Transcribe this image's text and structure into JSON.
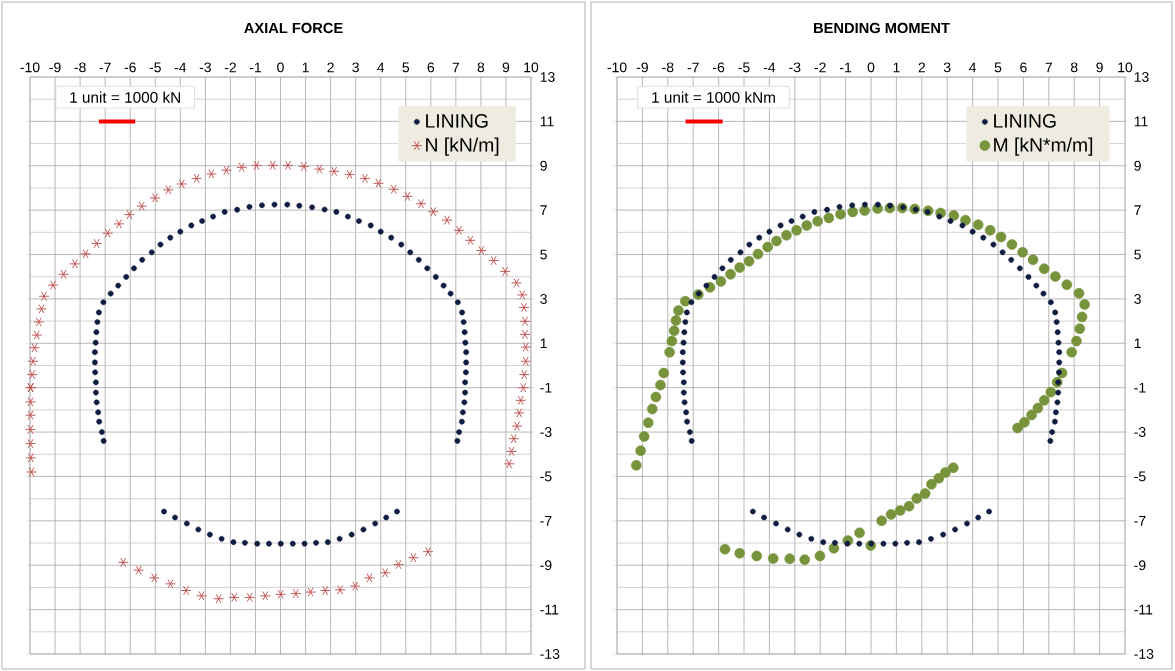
{
  "chart_data": [
    {
      "type": "scatter",
      "title": "AXIAL FORCE",
      "xlim": [
        -10,
        10
      ],
      "ylim": [
        -13,
        13
      ],
      "xticks": [
        -10,
        -9,
        -8,
        -7,
        -6,
        -5,
        -4,
        -3,
        -2,
        -1,
        0,
        1,
        2,
        3,
        4,
        5,
        6,
        7,
        8,
        9,
        10
      ],
      "yticks": [
        -13,
        -11,
        -9,
        -7,
        -5,
        -3,
        -1,
        1,
        3,
        5,
        7,
        9,
        11,
        13
      ],
      "grid": true,
      "legend": "top right",
      "annotations": [
        "1 unit = 1000 kN"
      ],
      "series": [
        {
          "name": "LINING",
          "color": "#0f1d40",
          "marker": "circle",
          "x": [
            -7.06,
            -7.13,
            -7.24,
            -7.28,
            -7.34,
            -7.37,
            -7.37,
            -7.4,
            -7.41,
            -7.41,
            -7.38,
            -7.35,
            -7.31,
            -7.25,
            -7.07,
            -6.78,
            -6.48,
            -6.16,
            -5.85,
            -5.52,
            -5.14,
            -4.79,
            -4.4,
            -4.0,
            -3.56,
            -3.13,
            -2.69,
            -2.23,
            -1.73,
            -1.24,
            -0.74,
            -0.24,
            0.27,
            0.75,
            1.26,
            1.76,
            2.23,
            2.69,
            3.13,
            3.6,
            4.0,
            4.42,
            4.82,
            5.18,
            5.52,
            5.86,
            6.2,
            6.51,
            6.79,
            7.08,
            7.25,
            7.31,
            7.35,
            7.38,
            7.41,
            7.41,
            7.4,
            7.37,
            7.37,
            7.34,
            7.28,
            7.24,
            7.13,
            7.06,
            -4.65,
            -4.21,
            -3.74,
            -3.28,
            -2.82,
            -2.35,
            -1.88,
            -1.42,
            -0.93,
            -0.46,
            0.01,
            0.49,
            0.96,
            1.42,
            1.89,
            2.36,
            2.84,
            3.31,
            3.78,
            4.22,
            4.65
          ],
          "values": [
            -3.4,
            -3.0,
            -2.53,
            -2.11,
            -1.66,
            -1.22,
            -0.76,
            -0.31,
            0.14,
            0.6,
            1.03,
            1.5,
            1.96,
            2.39,
            2.85,
            3.24,
            3.6,
            3.99,
            4.38,
            4.76,
            5.1,
            5.45,
            5.76,
            6.03,
            6.31,
            6.51,
            6.71,
            6.92,
            7.02,
            7.15,
            7.22,
            7.25,
            7.25,
            7.2,
            7.13,
            7.03,
            6.92,
            6.71,
            6.51,
            6.31,
            6.03,
            5.76,
            5.45,
            5.1,
            4.76,
            4.38,
            3.99,
            3.6,
            3.24,
            2.85,
            2.39,
            1.96,
            1.5,
            1.03,
            0.6,
            0.14,
            -0.31,
            -0.76,
            -1.22,
            -1.66,
            -2.11,
            -2.53,
            -3.0,
            -3.4,
            -6.58,
            -6.85,
            -7.12,
            -7.39,
            -7.62,
            -7.81,
            -7.96,
            -7.99,
            -8.03,
            -8.03,
            -8.03,
            -8.03,
            -8.03,
            -7.99,
            -7.96,
            -7.81,
            -7.62,
            -7.39,
            -7.12,
            -6.85,
            -6.58
          ]
        },
        {
          "name": "N [kN/m]",
          "color": "#c0504d",
          "marker": "cross",
          "x": [
            -9.94,
            -9.97,
            -9.98,
            -9.98,
            -9.98,
            -9.98,
            -9.98,
            -9.97,
            -9.91,
            -9.88,
            -9.82,
            -9.73,
            -9.65,
            -9.54,
            -9.44,
            -9.08,
            -8.66,
            -8.21,
            -7.78,
            -7.34,
            -6.9,
            -6.45,
            -6.03,
            -5.54,
            -5.01,
            -4.48,
            -3.94,
            -3.35,
            -2.76,
            -2.16,
            -1.55,
            -0.96,
            -0.31,
            0.3,
            0.93,
            1.55,
            2.14,
            2.76,
            3.37,
            3.91,
            4.52,
            5.07,
            5.61,
            6.1,
            6.65,
            7.13,
            7.58,
            8.02,
            8.51,
            8.97,
            9.42,
            9.65,
            9.72,
            9.76,
            9.76,
            9.79,
            9.79,
            9.73,
            9.69,
            9.59,
            9.53,
            9.44,
            9.31,
            9.22,
            9.13,
            -6.28,
            -5.66,
            -5.04,
            -4.39,
            -3.77,
            -3.15,
            -2.47,
            -1.85,
            -1.23,
            -0.61,
            0.01,
            0.61,
            1.2,
            1.79,
            2.38,
            2.98,
            3.55,
            4.18,
            4.71,
            5.3,
            5.89
          ],
          "values": [
            -4.8,
            -4.16,
            -3.52,
            -2.88,
            -2.24,
            -1.64,
            -1.0,
            -1.0,
            -0.41,
            0.19,
            0.8,
            1.37,
            1.96,
            2.55,
            3.12,
            3.62,
            4.11,
            4.58,
            5.03,
            5.5,
            5.96,
            6.38,
            6.8,
            7.18,
            7.55,
            7.91,
            8.18,
            8.43,
            8.63,
            8.8,
            8.93,
            9.02,
            9.02,
            9.02,
            8.97,
            8.85,
            8.75,
            8.61,
            8.43,
            8.21,
            7.94,
            7.62,
            7.29,
            6.93,
            6.55,
            6.09,
            5.64,
            5.18,
            4.73,
            4.24,
            3.72,
            3.18,
            2.61,
            1.99,
            1.4,
            0.83,
            0.19,
            -0.41,
            -1.0,
            -1.57,
            -2.14,
            -2.73,
            -3.3,
            -3.87,
            -4.43,
            -8.87,
            -9.22,
            -9.57,
            -9.84,
            -10.14,
            -10.38,
            -10.51,
            -10.45,
            -10.45,
            -10.38,
            -10.31,
            -10.28,
            -10.21,
            -10.14,
            -10.11,
            -9.94,
            -9.57,
            -9.34,
            -8.97,
            -8.66,
            -8.39
          ]
        },
        {
          "type": "line",
          "color": "#ff0000",
          "marker": "none",
          "x": [
            -7.25,
            -5.8
          ],
          "values": [
            11,
            11
          ]
        }
      ]
    },
    {
      "type": "scatter",
      "title": "BENDING MOMENT",
      "xlim": [
        -10,
        10
      ],
      "ylim": [
        -13,
        13
      ],
      "xticks": [
        -10,
        -9,
        -8,
        -7,
        -6,
        -5,
        -4,
        -3,
        -2,
        -1,
        0,
        1,
        2,
        3,
        4,
        5,
        6,
        7,
        8,
        9,
        10
      ],
      "yticks": [
        -13,
        -11,
        -9,
        -7,
        -5,
        -3,
        -1,
        1,
        3,
        5,
        7,
        9,
        11,
        13
      ],
      "grid": true,
      "legend": "top right",
      "annotations": [
        "1 unit = 1000 kNm"
      ],
      "series": [
        {
          "name": "LINING",
          "color": "#0f1d40",
          "marker": "circle",
          "x": [
            -7.06,
            -7.13,
            -7.24,
            -7.28,
            -7.34,
            -7.37,
            -7.37,
            -7.4,
            -7.41,
            -7.41,
            -7.38,
            -7.35,
            -7.31,
            -7.25,
            -7.07,
            -6.78,
            -6.48,
            -6.16,
            -5.85,
            -5.52,
            -5.14,
            -4.79,
            -4.4,
            -4.0,
            -3.56,
            -3.13,
            -2.69,
            -2.23,
            -1.73,
            -1.24,
            -0.74,
            -0.24,
            0.27,
            0.75,
            1.26,
            1.76,
            2.23,
            2.69,
            3.13,
            3.6,
            4.0,
            4.42,
            4.82,
            5.18,
            5.52,
            5.86,
            6.2,
            6.51,
            6.79,
            7.08,
            7.25,
            7.31,
            7.35,
            7.38,
            7.41,
            7.41,
            7.4,
            7.37,
            7.37,
            7.34,
            7.28,
            7.24,
            7.13,
            7.06,
            -4.65,
            -4.21,
            -3.74,
            -3.28,
            -2.82,
            -2.35,
            -1.88,
            -1.42,
            -0.93,
            -0.46,
            0.01,
            0.49,
            0.96,
            1.42,
            1.89,
            2.36,
            2.84,
            3.31,
            3.78,
            4.22,
            4.65
          ],
          "values": [
            -3.4,
            -3.0,
            -2.53,
            -2.11,
            -1.66,
            -1.22,
            -0.76,
            -0.31,
            0.14,
            0.6,
            1.03,
            1.5,
            1.96,
            2.39,
            2.85,
            3.24,
            3.6,
            3.99,
            4.38,
            4.76,
            5.1,
            5.45,
            5.76,
            6.03,
            6.31,
            6.51,
            6.71,
            6.92,
            7.02,
            7.15,
            7.22,
            7.25,
            7.25,
            7.2,
            7.13,
            7.03,
            6.92,
            6.71,
            6.51,
            6.31,
            6.03,
            5.76,
            5.45,
            5.1,
            4.76,
            4.38,
            3.99,
            3.6,
            3.24,
            2.85,
            2.39,
            1.96,
            1.5,
            1.03,
            0.6,
            0.14,
            -0.31,
            -0.76,
            -1.22,
            -1.66,
            -2.11,
            -2.53,
            -3.0,
            -3.4,
            -6.58,
            -6.85,
            -7.12,
            -7.39,
            -7.62,
            -7.81,
            -7.96,
            -7.99,
            -8.03,
            -8.03,
            -8.03,
            -8.03,
            -8.03,
            -7.99,
            -7.96,
            -7.81,
            -7.62,
            -7.39,
            -7.12,
            -6.85,
            -6.58
          ]
        },
        {
          "name": "M [kN*m/m]",
          "color": "#77933c",
          "marker": "circle",
          "x": [
            -9.24,
            -9.07,
            -8.93,
            -8.77,
            -8.61,
            -8.47,
            -8.29,
            -8.16,
            -7.93,
            -7.84,
            -7.75,
            -7.68,
            -7.58,
            -7.31,
            -6.8,
            -6.34,
            -5.91,
            -5.53,
            -5.17,
            -4.8,
            -4.45,
            -4.07,
            -3.72,
            -3.33,
            -2.93,
            -2.53,
            -2.1,
            -1.66,
            -1.2,
            -0.72,
            -0.25,
            0.26,
            0.74,
            1.23,
            1.72,
            2.25,
            2.74,
            3.26,
            3.72,
            4.22,
            4.69,
            5.12,
            5.55,
            5.97,
            6.38,
            6.82,
            7.26,
            7.71,
            8.19,
            8.41,
            8.31,
            8.22,
            8.09,
            7.9,
            7.52,
            7.33,
            7.08,
            6.82,
            6.57,
            6.32,
            6.04,
            5.77,
            -5.75,
            -5.17,
            -4.5,
            -3.85,
            -3.2,
            -2.61,
            -2.01,
            -1.46,
            -0.91,
            -0.45,
            -0.01,
            0.42,
            0.79,
            1.15,
            1.5,
            1.8,
            2.13,
            2.38,
            2.67,
            2.93,
            3.24
          ],
          "values": [
            -4.5,
            -3.84,
            -3.2,
            -2.58,
            -1.96,
            -1.42,
            -0.88,
            -0.34,
            0.6,
            1.1,
            1.57,
            2.03,
            2.48,
            2.9,
            3.2,
            3.52,
            3.79,
            4.11,
            4.41,
            4.7,
            5.02,
            5.34,
            5.61,
            5.87,
            6.09,
            6.31,
            6.5,
            6.65,
            6.82,
            6.92,
            6.98,
            7.07,
            7.1,
            7.1,
            7.05,
            6.97,
            6.87,
            6.76,
            6.55,
            6.34,
            6.09,
            5.79,
            5.45,
            5.1,
            4.76,
            4.36,
            4.01,
            3.64,
            3.25,
            2.75,
            2.19,
            1.66,
            1.1,
            0.6,
            -0.34,
            -0.76,
            -1.2,
            -1.57,
            -1.92,
            -2.23,
            -2.56,
            -2.82,
            -8.28,
            -8.46,
            -8.58,
            -8.7,
            -8.71,
            -8.75,
            -8.58,
            -8.24,
            -7.89,
            -7.54,
            -8.11,
            -7.0,
            -6.71,
            -6.53,
            -6.34,
            -5.99,
            -5.77,
            -5.35,
            -5.08,
            -4.82,
            -4.61
          ]
        },
        {
          "type": "line",
          "color": "#ff0000",
          "marker": "none",
          "x": [
            -7.3,
            -5.84
          ],
          "values": [
            11,
            11
          ]
        }
      ]
    }
  ]
}
